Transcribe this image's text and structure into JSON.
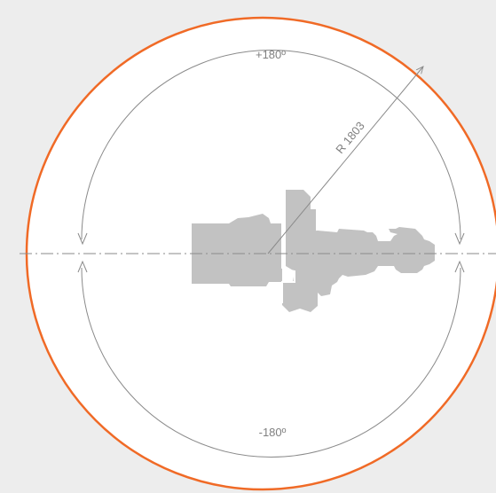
{
  "diagram": {
    "labels": {
      "top_angle": "+180º",
      "bottom_angle": "-180º",
      "radius": "R 1803"
    },
    "colors": {
      "background": "#ededed",
      "outer_circle": "#f06a26",
      "inner_circle": "#8a8a8a",
      "robot_silhouette": "#c2c2c2",
      "centerline": "#8a8a8a"
    }
  }
}
